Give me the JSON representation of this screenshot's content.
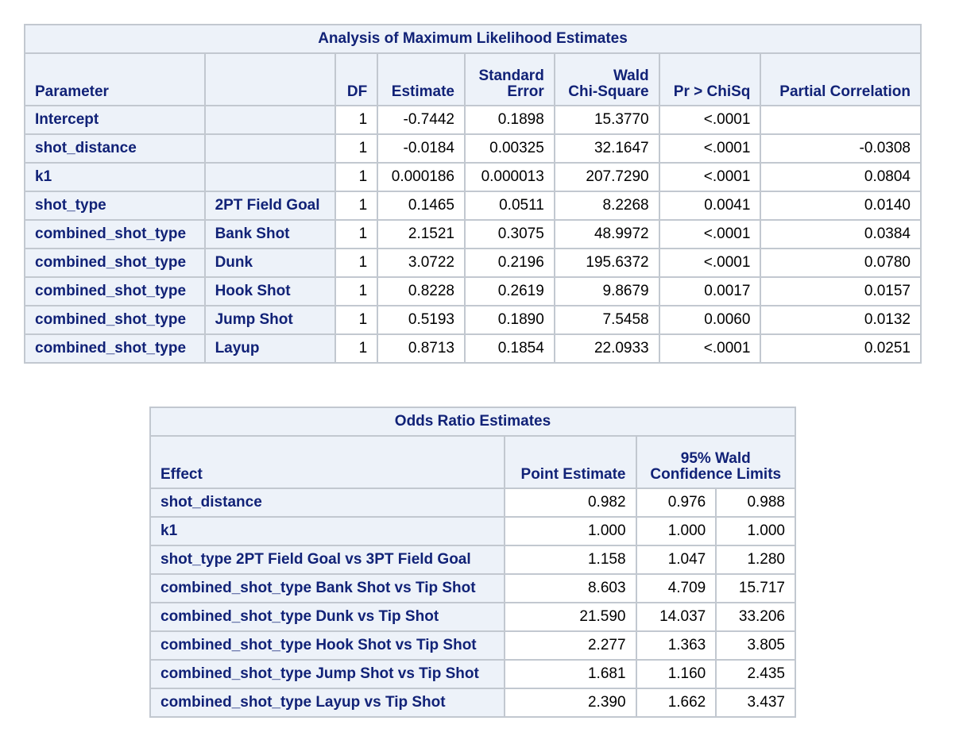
{
  "mle": {
    "title": "Analysis of Maximum Likelihood Estimates",
    "headers": {
      "parameter": "Parameter",
      "level": "",
      "df": "DF",
      "estimate": "Estimate",
      "se_line1": "Standard",
      "se_line2": "Error",
      "wald_line1": "Wald",
      "wald_line2": "Chi-Square",
      "p": "Pr > ChiSq",
      "partial": "Partial Correlation"
    },
    "rows": [
      {
        "param": "Intercept",
        "level": "",
        "df": "1",
        "est": "-0.7442",
        "se": "0.1898",
        "wald": "15.3770",
        "p": "<.0001",
        "pc": ""
      },
      {
        "param": "shot_distance",
        "level": "",
        "df": "1",
        "est": "-0.0184",
        "se": "0.00325",
        "wald": "32.1647",
        "p": "<.0001",
        "pc": "-0.0308"
      },
      {
        "param": "k1",
        "level": "",
        "df": "1",
        "est": "0.000186",
        "se": "0.000013",
        "wald": "207.7290",
        "p": "<.0001",
        "pc": "0.0804"
      },
      {
        "param": "shot_type",
        "level": "2PT Field Goal",
        "df": "1",
        "est": "0.1465",
        "se": "0.0511",
        "wald": "8.2268",
        "p": "0.0041",
        "pc": "0.0140"
      },
      {
        "param": "combined_shot_type",
        "level": "Bank Shot",
        "df": "1",
        "est": "2.1521",
        "se": "0.3075",
        "wald": "48.9972",
        "p": "<.0001",
        "pc": "0.0384"
      },
      {
        "param": "combined_shot_type",
        "level": "Dunk",
        "df": "1",
        "est": "3.0722",
        "se": "0.2196",
        "wald": "195.6372",
        "p": "<.0001",
        "pc": "0.0780"
      },
      {
        "param": "combined_shot_type",
        "level": "Hook Shot",
        "df": "1",
        "est": "0.8228",
        "se": "0.2619",
        "wald": "9.8679",
        "p": "0.0017",
        "pc": "0.0157"
      },
      {
        "param": "combined_shot_type",
        "level": "Jump Shot",
        "df": "1",
        "est": "0.5193",
        "se": "0.1890",
        "wald": "7.5458",
        "p": "0.0060",
        "pc": "0.0132"
      },
      {
        "param": "combined_shot_type",
        "level": "Layup",
        "df": "1",
        "est": "0.8713",
        "se": "0.1854",
        "wald": "22.0933",
        "p": "<.0001",
        "pc": "0.0251"
      }
    ]
  },
  "odds": {
    "title": "Odds Ratio Estimates",
    "headers": {
      "effect": "Effect",
      "point": "Point Estimate",
      "ci_line1": "95% Wald",
      "ci_line2": "Confidence Limits"
    },
    "rows": [
      {
        "effect": "shot_distance",
        "point": "0.982",
        "lower": "0.976",
        "upper": "0.988"
      },
      {
        "effect": "k1",
        "point": "1.000",
        "lower": "1.000",
        "upper": "1.000"
      },
      {
        "effect": "shot_type 2PT Field Goal vs 3PT Field Goal",
        "point": "1.158",
        "lower": "1.047",
        "upper": "1.280"
      },
      {
        "effect": "combined_shot_type Bank Shot vs Tip Shot",
        "point": "8.603",
        "lower": "4.709",
        "upper": "15.717"
      },
      {
        "effect": "combined_shot_type Dunk vs Tip Shot",
        "point": "21.590",
        "lower": "14.037",
        "upper": "33.206"
      },
      {
        "effect": "combined_shot_type Hook Shot vs Tip Shot",
        "point": "2.277",
        "lower": "1.363",
        "upper": "3.805"
      },
      {
        "effect": "combined_shot_type Jump Shot vs Tip Shot",
        "point": "1.681",
        "lower": "1.160",
        "upper": "2.435"
      },
      {
        "effect": "combined_shot_type Layup vs Tip Shot",
        "point": "2.390",
        "lower": "1.662",
        "upper": "3.437"
      }
    ]
  }
}
